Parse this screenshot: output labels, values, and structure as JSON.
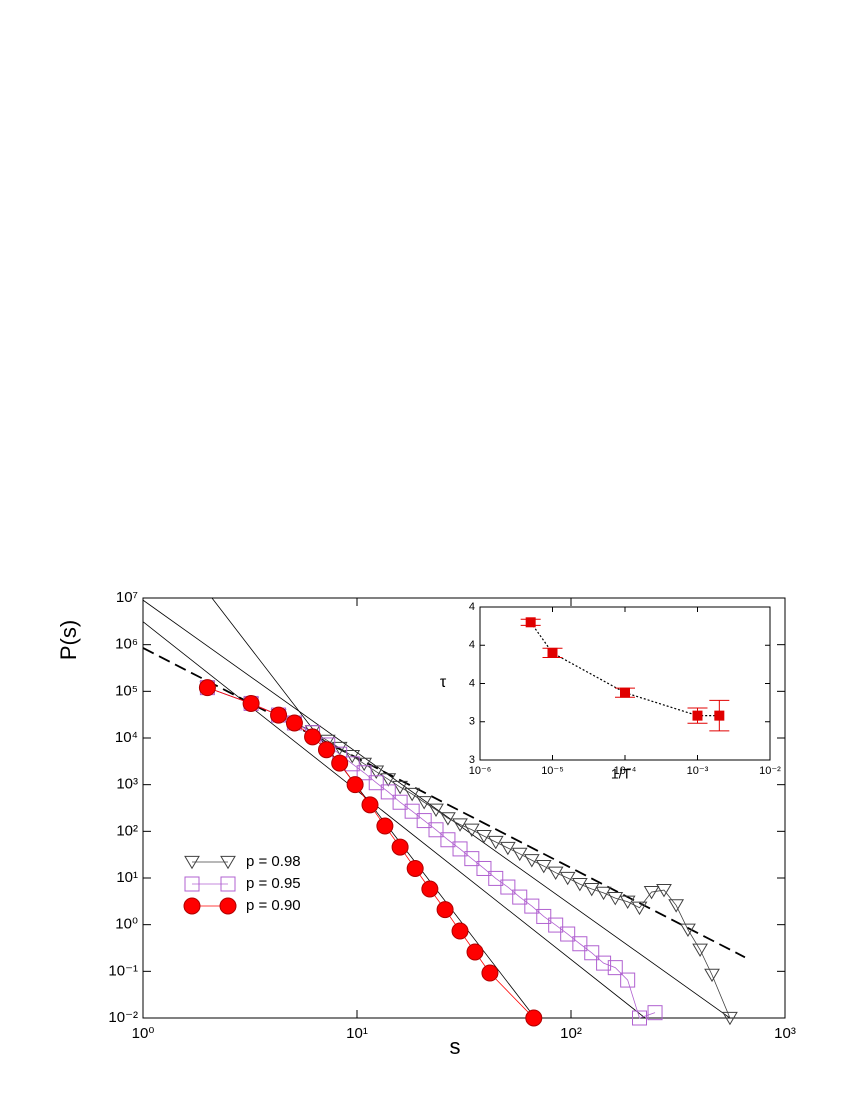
{
  "chart_data": [
    {
      "type": "line",
      "xlabel": "s",
      "ylabel": "P(s)",
      "log_x": true,
      "log_y": true,
      "legend": "lower left",
      "xlim": [
        1,
        1000
      ],
      "ylim": [
        0.01,
        10000000
      ],
      "xticks": [
        {
          "value": 1,
          "label": "10⁰"
        },
        {
          "value": 10,
          "label": "10¹"
        },
        {
          "value": 100,
          "label": "10²"
        },
        {
          "value": 1000,
          "label": "10³"
        }
      ],
      "yticks": [
        {
          "value": 0.01,
          "label": "10⁻²"
        },
        {
          "value": 0.1,
          "label": "10⁻¹"
        },
        {
          "value": 1,
          "label": "10⁰"
        },
        {
          "value": 10,
          "label": "10¹"
        },
        {
          "value": 100,
          "label": "10²"
        },
        {
          "value": 1000,
          "label": "10³"
        },
        {
          "value": 10000,
          "label": "10⁴"
        },
        {
          "value": 100000,
          "label": "10⁵"
        },
        {
          "value": 1000000,
          "label": "10⁶"
        },
        {
          "value": 10000000,
          "label": "10⁷"
        }
      ],
      "series": [
        {
          "name": "p = 0.98",
          "color": "#404040",
          "marker": "triangle-down",
          "filled": false,
          "x": [
            2,
            3.2,
            4.3,
            5.1,
            6.2,
            7.3,
            8.3,
            9.5,
            10.8,
            12.3,
            14,
            15.9,
            18.1,
            20.6,
            23.4,
            26.6,
            30.3,
            34.4,
            39.2,
            44.5,
            50.7,
            57.6,
            65.6,
            74.6,
            84.8,
            96.5,
            110,
            125,
            142,
            161,
            184,
            209,
            238,
            272,
            310,
            352,
            401,
            456,
            553
          ],
          "values": [
            120000,
            55000,
            31000,
            21000,
            14000,
            8700,
            6100,
            4100,
            2800,
            1900,
            1300,
            890,
            630,
            420,
            290,
            190,
            140,
            108,
            79,
            59,
            44,
            33,
            24,
            18,
            13,
            10,
            7.4,
            5.8,
            4.8,
            3.7,
            3.1,
            2.3,
            5,
            5.5,
            2.6,
            0.78,
            0.29,
            0.084,
            0.01
          ]
        },
        {
          "name": "p = 0.95",
          "color": "#b060d0",
          "marker": "square",
          "filled": false,
          "x": [
            2,
            3.2,
            4.3,
            5.1,
            6.2,
            7.3,
            8.3,
            9.5,
            10.8,
            12.3,
            14,
            15.9,
            18.1,
            20.6,
            23.4,
            26.6,
            30.3,
            34.4,
            39.2,
            44.5,
            50.7,
            57.6,
            65.6,
            74.6,
            84.8,
            96.5,
            110,
            125,
            142,
            161,
            184,
            209,
            247
          ],
          "values": [
            120000,
            55000,
            31000,
            21000,
            13000,
            7100,
            4500,
            2800,
            1800,
            1100,
            700,
            420,
            270,
            170,
            108,
            66,
            42,
            26,
            16,
            9.8,
            6.4,
            3.9,
            2.5,
            1.5,
            0.98,
            0.63,
            0.39,
            0.25,
            0.15,
            0.12,
            0.065,
            0.01,
            0.013
          ]
        },
        {
          "name": "p = 0.90",
          "color": "#ff0000",
          "marker": "circle",
          "filled": true,
          "x": [
            2,
            3.2,
            4.3,
            5.1,
            6.2,
            7.2,
            8.3,
            9.8,
            11.5,
            13.5,
            15.9,
            18.7,
            21.9,
            25.8,
            30.3,
            35.6,
            41.8,
            67
          ],
          "values": [
            120000,
            55000,
            31000,
            21000,
            10600,
            5600,
            2900,
            1000,
            370,
            130,
            46,
            16,
            5.8,
            2.1,
            0.73,
            0.26,
            0.092,
            0.01
          ]
        }
      ],
      "fit_lines": [
        {
          "style": "dashed",
          "x": [
            1,
            650
          ],
          "values": [
            850000,
            0.2
          ]
        },
        {
          "style": "solid",
          "x": [
            1,
            553
          ],
          "values": [
            9000000,
            0.01
          ]
        },
        {
          "style": "solid",
          "x": [
            1,
            222
          ],
          "values": [
            3100000,
            0.01
          ]
        },
        {
          "style": "solid",
          "x": [
            2.1,
            68
          ],
          "values": [
            10000000,
            0.01
          ]
        }
      ]
    },
    {
      "type": "errorbar",
      "xlabel": "1/T",
      "ylabel": "τ",
      "log_x": true,
      "log_y": false,
      "color": "#e00000",
      "line_style": "dotted",
      "xlim": [
        1e-06,
        0.01
      ],
      "ylim": [
        3,
        4
      ],
      "xticks": [
        {
          "value": 1e-06,
          "label": "10⁻⁶"
        },
        {
          "value": 1e-05,
          "label": "10⁻⁵"
        },
        {
          "value": 0.0001,
          "label": "10⁻⁴"
        },
        {
          "value": 0.001,
          "label": "10⁻³"
        },
        {
          "value": 0.01,
          "label": "10⁻²"
        }
      ],
      "yticks": [
        3,
        {
          "value": 3.25,
          "label": "3"
        },
        {
          "value": 3.5,
          "label": "4"
        },
        {
          "value": 3.75,
          "label": "4"
        },
        4
      ],
      "x": [
        5e-06,
        1e-05,
        0.0001,
        0.001,
        0.002
      ],
      "values": [
        3.9,
        3.7,
        3.44,
        3.29,
        3.29
      ],
      "errors": [
        0.02,
        0.03,
        0.03,
        0.05,
        0.1
      ]
    }
  ]
}
